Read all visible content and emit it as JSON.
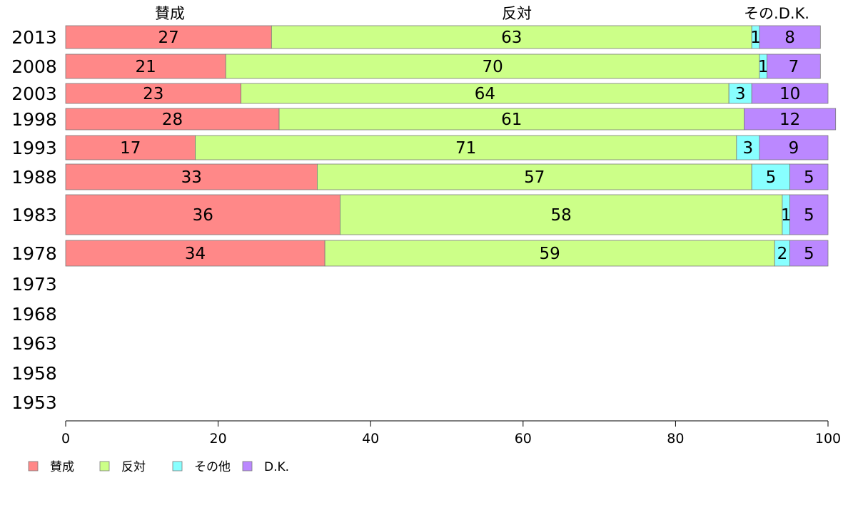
{
  "chart_data": {
    "type": "bar",
    "orientation": "horizontal",
    "stacked": true,
    "categories": [
      "2013",
      "2008",
      "2003",
      "1998",
      "1993",
      "1988",
      "1983",
      "1978",
      "1973",
      "1968",
      "1963",
      "1958",
      "1953"
    ],
    "series": [
      {
        "name": "賛成",
        "color": "#ff8888",
        "values": [
          27,
          21,
          23,
          28,
          17,
          33,
          36,
          34,
          null,
          null,
          null,
          null,
          null
        ]
      },
      {
        "name": "反対",
        "color": "#ccff88",
        "values": [
          63,
          70,
          64,
          61,
          71,
          57,
          58,
          59,
          null,
          null,
          null,
          null,
          null
        ]
      },
      {
        "name": "その他",
        "color": "#88ffff",
        "values": [
          1,
          1,
          3,
          0,
          3,
          5,
          1,
          2,
          null,
          null,
          null,
          null,
          null
        ]
      },
      {
        "name": "D.K.",
        "color": "#bb88ff",
        "values": [
          8,
          7,
          10,
          12,
          9,
          5,
          5,
          5,
          null,
          null,
          null,
          null,
          null
        ]
      }
    ],
    "header_labels": [
      "賛成",
      "反対",
      "その.D.K."
    ],
    "xlim": [
      0,
      100
    ],
    "xticks": [
      "0",
      "20",
      "40",
      "60",
      "80",
      "100"
    ],
    "grid": false,
    "legend_position": "bottom-left",
    "legend": [
      "賛成",
      "反対",
      "その他",
      "D.K."
    ]
  }
}
